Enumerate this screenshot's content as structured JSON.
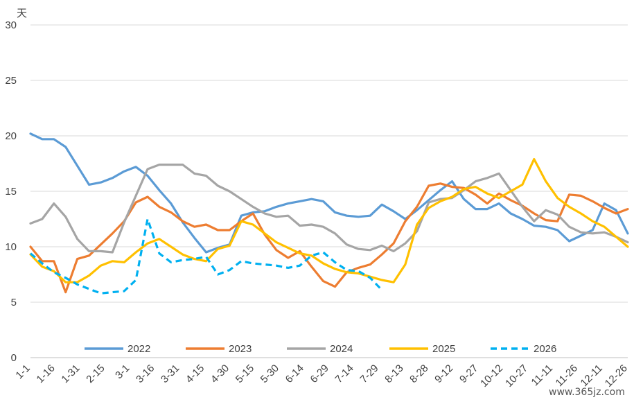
{
  "chart_data": {
    "type": "line",
    "y_unit": "天",
    "ylim": [
      0,
      30
    ],
    "yticks": [
      0,
      5,
      10,
      15,
      20,
      25,
      30
    ],
    "grid": true,
    "legend_position": "bottom",
    "x_ticks": [
      "1-1",
      "1-16",
      "1-31",
      "2-15",
      "3-1",
      "3-16",
      "3-31",
      "4-15",
      "4-30",
      "5-15",
      "5-30",
      "6-14",
      "6-29",
      "7-14",
      "7-29",
      "8-13",
      "8-28",
      "9-12",
      "9-27",
      "10-12",
      "10-27",
      "11-11",
      "11-26",
      "12-11",
      "12-26"
    ],
    "series": [
      {
        "name": "2022",
        "color": "#5B9BD5",
        "dashed": false,
        "values": [
          20.2,
          19.7,
          19.7,
          19.0,
          17.3,
          15.6,
          15.8,
          16.2,
          16.8,
          17.2,
          16.4,
          15.1,
          13.9,
          12.2,
          10.8,
          9.5,
          9.9,
          10.2,
          12.8,
          13.1,
          13.2,
          13.6,
          13.9,
          14.1,
          14.3,
          14.1,
          13.1,
          12.8,
          12.7,
          12.8,
          13.8,
          13.2,
          12.5,
          13.3,
          14.2,
          15.1,
          15.9,
          14.3,
          13.4,
          13.4,
          13.9,
          13.0,
          12.5,
          11.9,
          11.8,
          11.5,
          10.5,
          11.0,
          11.5,
          13.9,
          13.3,
          11.2
        ]
      },
      {
        "name": "2023",
        "color": "#ED7D31",
        "dashed": false,
        "values": [
          10.0,
          8.7,
          8.7,
          5.9,
          8.9,
          9.2,
          10.2,
          11.2,
          12.3,
          14.0,
          14.5,
          13.6,
          13.1,
          12.3,
          11.8,
          12.0,
          11.5,
          11.5,
          12.3,
          13.0,
          11.1,
          9.7,
          9.0,
          9.6,
          8.2,
          6.9,
          6.4,
          7.7,
          8.1,
          8.4,
          9.3,
          10.3,
          12.3,
          13.6,
          15.5,
          15.7,
          15.4,
          15.3,
          14.7,
          13.9,
          14.8,
          14.2,
          13.7,
          13.0,
          12.4,
          12.3,
          14.7,
          14.6,
          14.1,
          13.5,
          13.0,
          13.4
        ]
      },
      {
        "name": "2024",
        "color": "#A5A5A5",
        "dashed": false,
        "values": [
          12.1,
          12.5,
          13.9,
          12.7,
          10.7,
          9.6,
          9.6,
          9.5,
          12.2,
          14.6,
          17.0,
          17.4,
          17.4,
          17.4,
          16.6,
          16.4,
          15.5,
          15.0,
          14.3,
          13.6,
          13.0,
          12.7,
          12.8,
          11.9,
          12.0,
          11.8,
          11.2,
          10.2,
          9.8,
          9.7,
          10.1,
          9.6,
          10.3,
          11.4,
          14.0,
          14.3,
          14.4,
          15.1,
          15.9,
          16.2,
          16.6,
          15.1,
          13.6,
          12.3,
          13.3,
          12.9,
          11.8,
          11.3,
          11.2,
          11.3,
          10.9,
          10.4
        ]
      },
      {
        "name": "2025",
        "color": "#FFC000",
        "dashed": false,
        "values": [
          9.3,
          8.2,
          7.8,
          6.8,
          6.8,
          7.4,
          8.3,
          8.7,
          8.6,
          9.5,
          10.3,
          10.7,
          10.0,
          9.3,
          8.9,
          8.7,
          9.8,
          10.1,
          12.3,
          12.0,
          11.2,
          10.4,
          9.9,
          9.4,
          9.2,
          8.5,
          8.0,
          7.7,
          7.6,
          7.3,
          7.0,
          6.8,
          8.4,
          12.0,
          13.5,
          14.1,
          14.5,
          15.2,
          15.4,
          14.8,
          14.4,
          15.0,
          15.6,
          17.9,
          15.9,
          14.4,
          13.6,
          13.0,
          12.3,
          11.8,
          10.9,
          10.0
        ]
      },
      {
        "name": "2026",
        "color": "#00B0F0",
        "dashed": true,
        "values": [
          9.4,
          8.5,
          7.7,
          7.2,
          6.6,
          6.2,
          5.8,
          5.9,
          6.0,
          7.0,
          12.5,
          9.4,
          8.6,
          8.8,
          8.9,
          9.1,
          7.5,
          7.9,
          8.7,
          8.5,
          8.4,
          8.3,
          8.1,
          8.3,
          9.2,
          9.5,
          8.6,
          7.9,
          7.8,
          7.2,
          6.1
        ]
      }
    ]
  },
  "watermark": "www.365jz.com"
}
